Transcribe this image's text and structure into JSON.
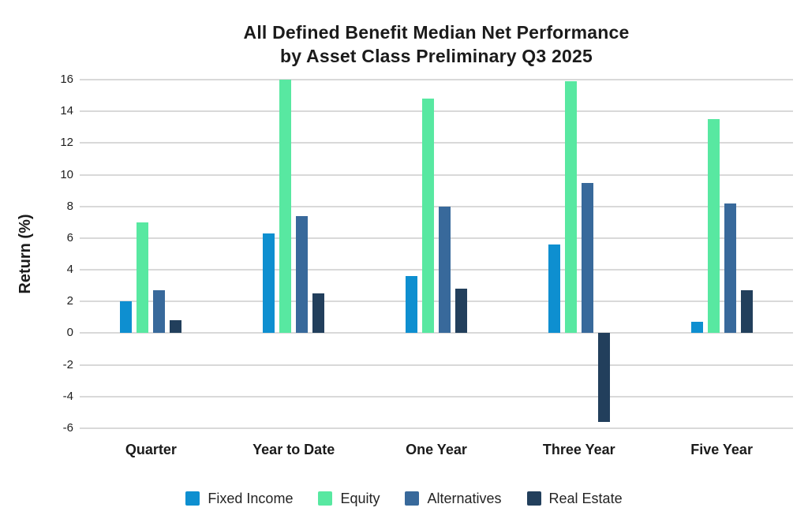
{
  "chart_data": {
    "type": "bar",
    "title": "All Defined Benefit Median Net Performance by Asset Class Preliminary Q3 2025",
    "title_lines": [
      "All Defined Benefit Median Net Performance",
      "by Asset Class Preliminary Q3 2025"
    ],
    "xlabel": "",
    "ylabel": "Return (%)",
    "ylim": [
      -6,
      16
    ],
    "yticks": [
      16,
      14,
      12,
      10,
      8,
      6,
      4,
      2,
      0,
      -2,
      -4,
      -6
    ],
    "grid": true,
    "legend_position": "bottom",
    "categories": [
      "Quarter",
      "Year to Date",
      "One Year",
      "Three Year",
      "Five Year"
    ],
    "series": [
      {
        "name": "Fixed Income",
        "color": "#0E8FD0",
        "values": [
          2.0,
          6.3,
          3.6,
          5.6,
          0.7
        ]
      },
      {
        "name": "Equity",
        "color": "#58E8A1",
        "values": [
          7.0,
          16.0,
          14.8,
          15.9,
          13.5
        ]
      },
      {
        "name": "Alternatives",
        "color": "#38699B",
        "values": [
          2.7,
          7.4,
          8.0,
          9.5,
          8.2
        ]
      },
      {
        "name": "Real Estate",
        "color": "#223F5C",
        "values": [
          0.8,
          2.5,
          2.8,
          -5.6,
          2.7
        ]
      }
    ]
  },
  "colors": {
    "grid": "#d9d9d9",
    "text": "#1b1b1b",
    "background": "#ffffff"
  }
}
